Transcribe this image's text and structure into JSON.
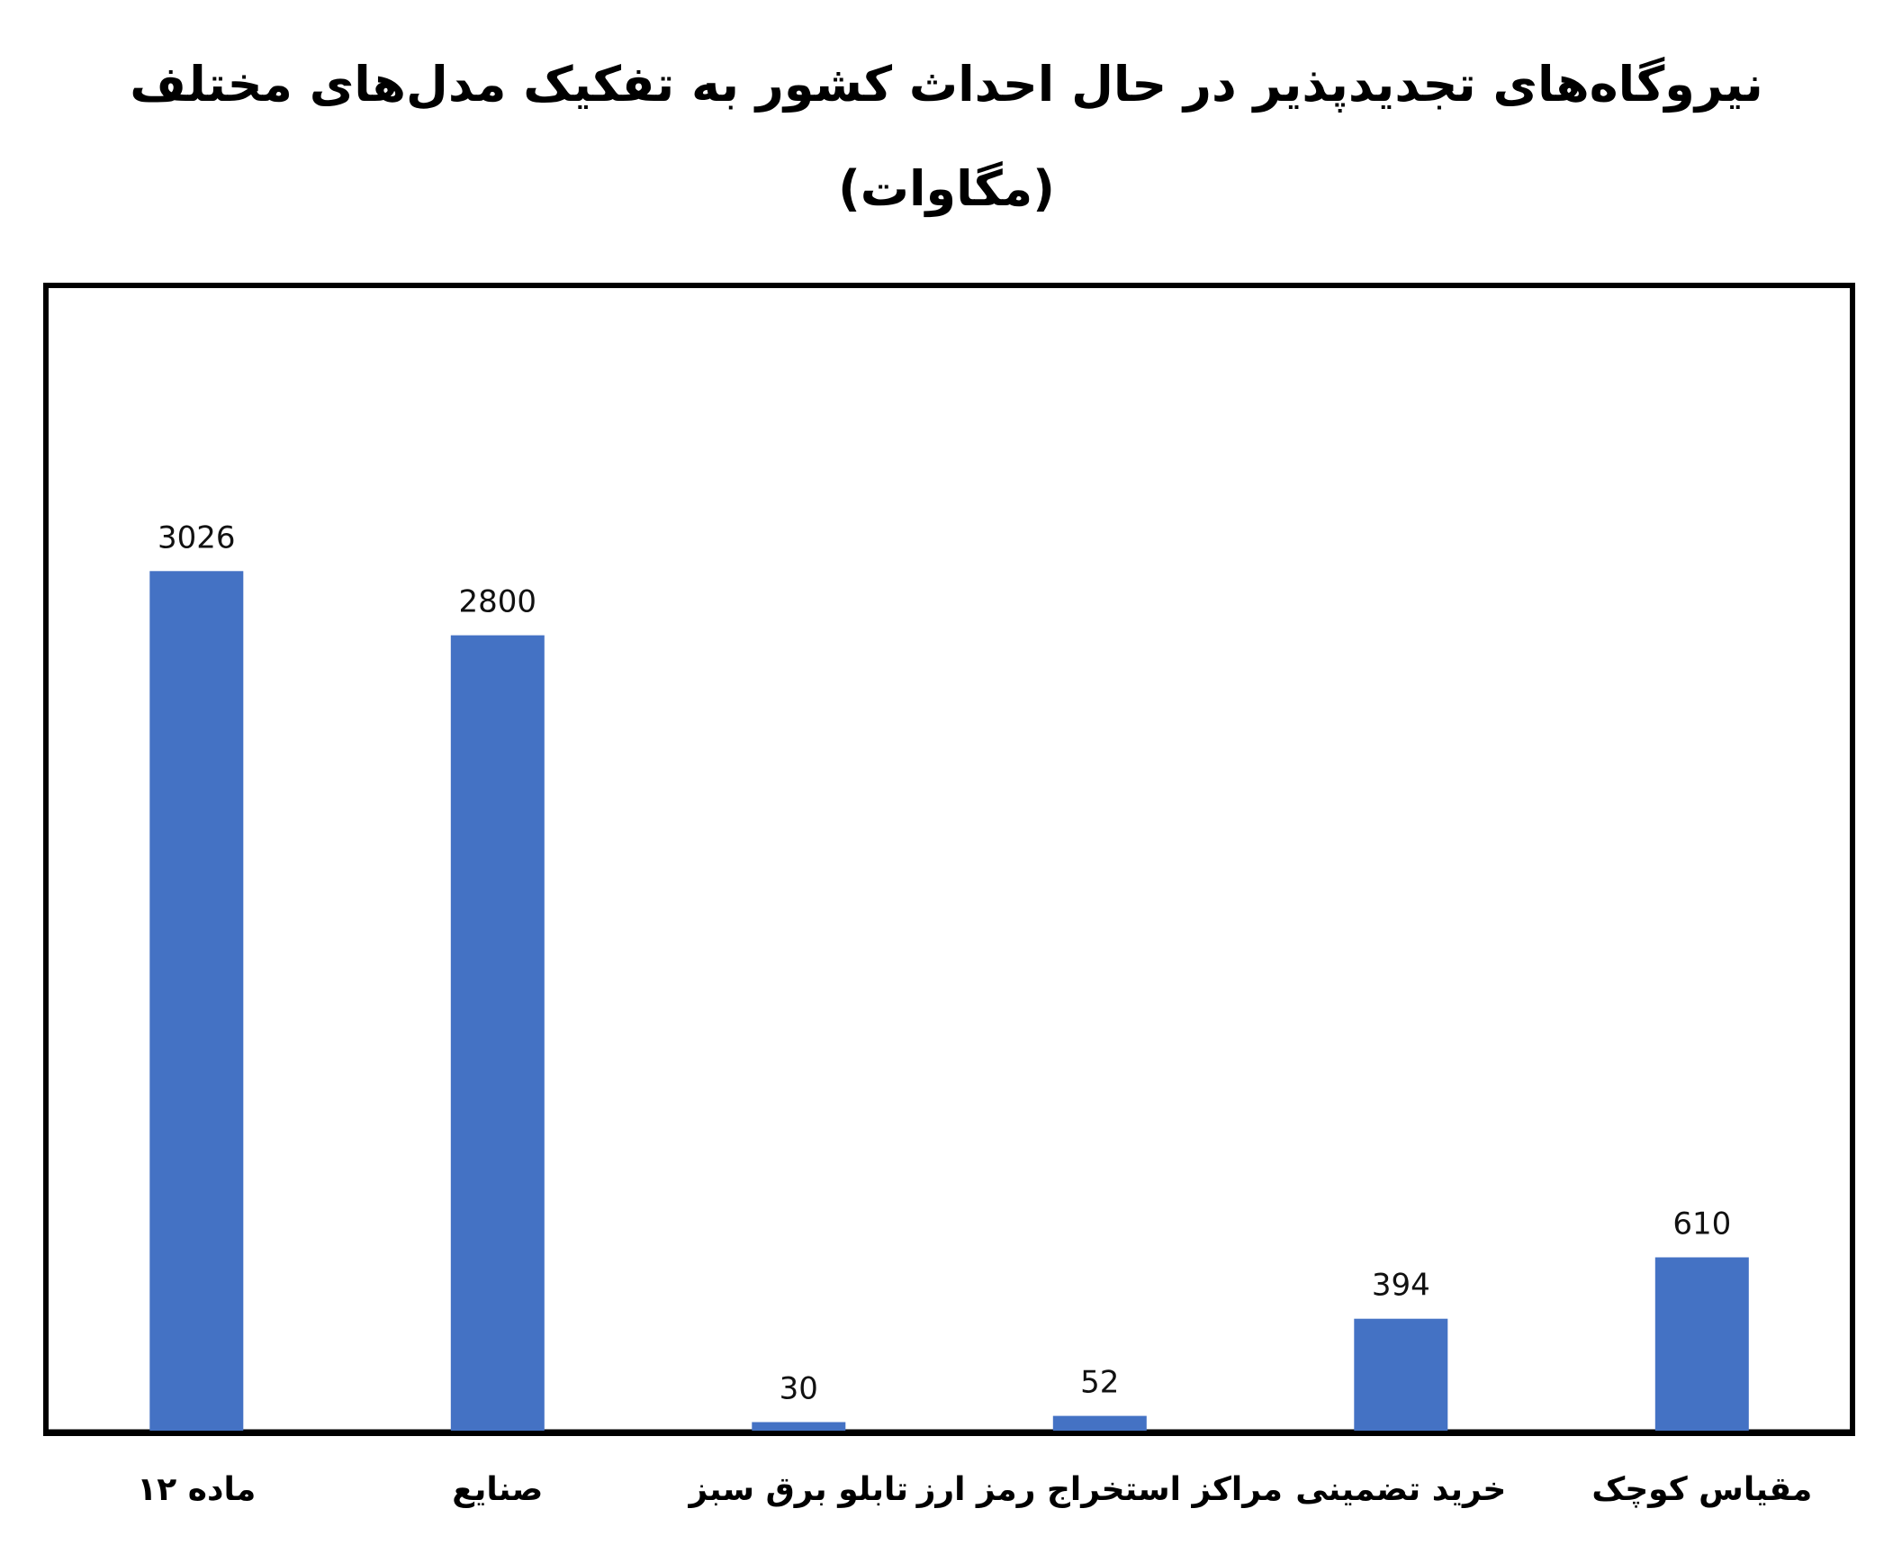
{
  "chart_data": {
    "type": "bar",
    "title": "نیروگاه‌های تجدیدپذیر در حال احداث کشور به تفکیک مدل‌های مختلف",
    "subtitle": "(مگاوات)",
    "categories": [
      "ماده ۱۲",
      "صنایع",
      "تابلو برق سبز",
      "مراکز استخراج رمز ارز",
      "خرید تضمینی",
      "مقیاس کوچک"
    ],
    "values": [
      3026,
      2800,
      30,
      52,
      394,
      610
    ],
    "data_labels": [
      "3026",
      "2800",
      "30",
      "52",
      "394",
      "610"
    ],
    "ylim": [
      0,
      3930
    ],
    "grid": false,
    "legend": "none",
    "bar_color": "#4472C4"
  }
}
